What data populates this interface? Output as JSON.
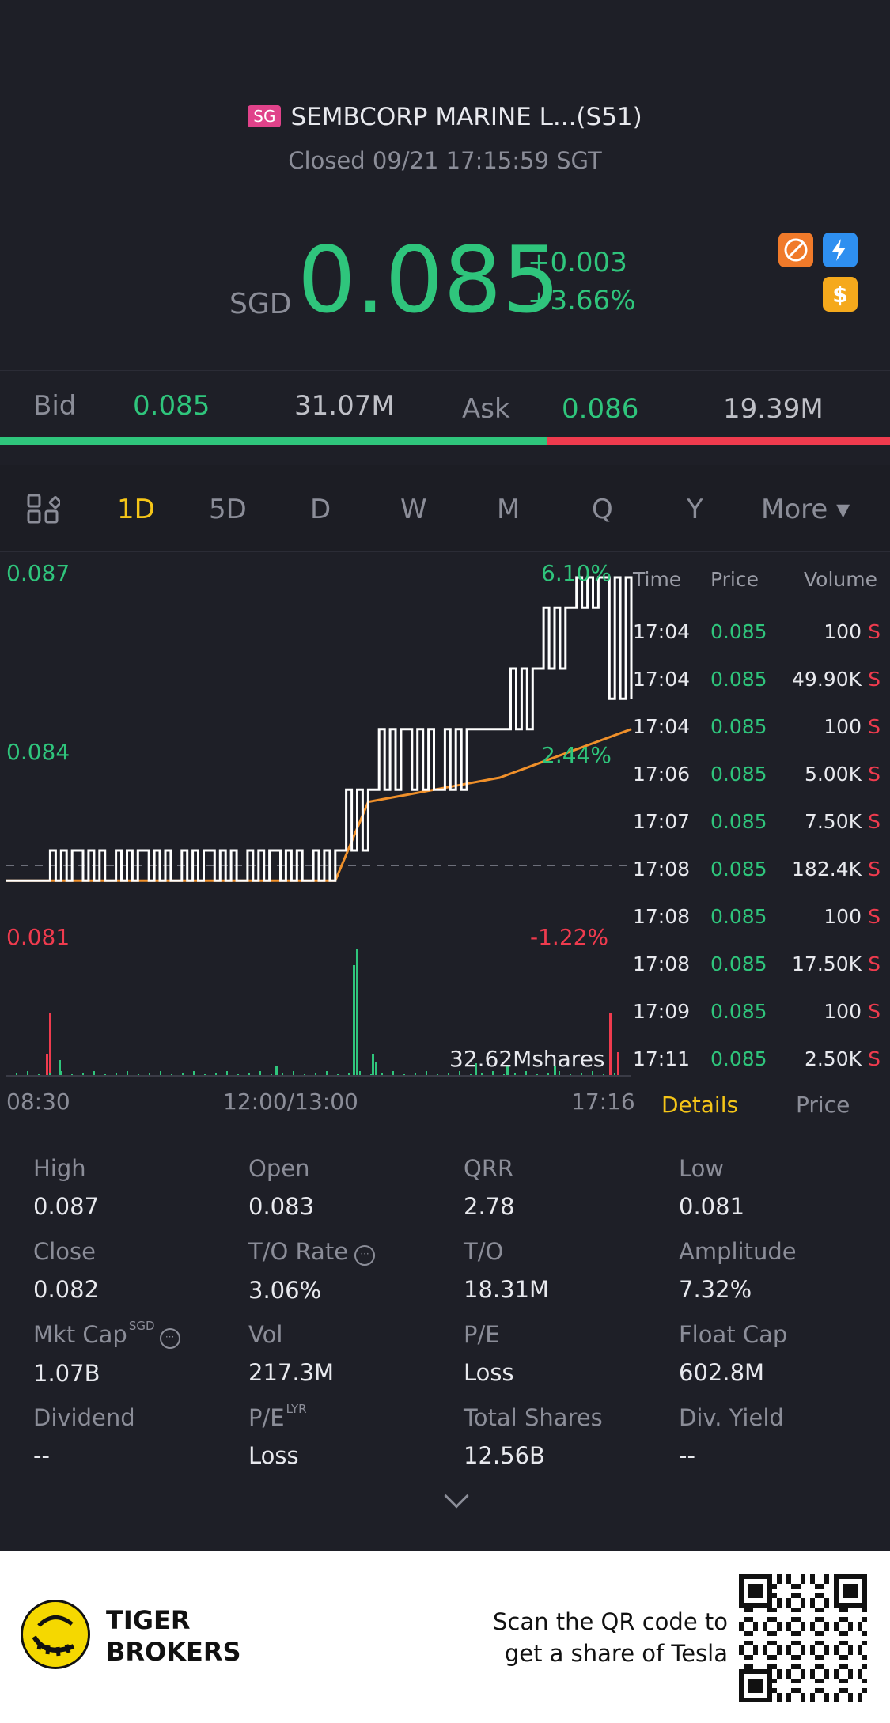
{
  "header": {
    "market_badge": "SG",
    "title": "SEMBCORP MARINE L...(S51)",
    "status": "Closed 09/21 17:15:59 SGT",
    "currency": "SGD",
    "price": "0.085",
    "change": "+0.003",
    "change_pct": "+3.66%",
    "icons": [
      "no-short-icon",
      "lightning-level1-icon",
      "dollar-icon"
    ],
    "dollar_glyph": "$"
  },
  "bidask": {
    "bid_label": "Bid",
    "bid_price": "0.085",
    "bid_volume": "31.07M",
    "ask_label": "Ask",
    "ask_price": "0.086",
    "ask_volume": "19.39M",
    "bid_share": 0.615
  },
  "tabs": {
    "items": [
      "1D",
      "5D",
      "D",
      "W",
      "M",
      "Q",
      "Y",
      "More ▾"
    ],
    "active": "1D"
  },
  "chart": {
    "y_top": "0.087",
    "y_mid": "0.084",
    "y_bottom": "0.081",
    "pct_top": "6.10%",
    "pct_mid": "2.44%",
    "pct_bottom": "-1.22%",
    "volume_label": "32.62Mshares",
    "x_start": "08:30",
    "x_mid": "12:00/13:00",
    "x_end": "17:16"
  },
  "chart_data": {
    "type": "line",
    "series": [
      {
        "values": [
          0.082,
          0.082,
          0.0825,
          0.082,
          0.0825,
          0.082,
          0.0825,
          0.082,
          0.0825,
          0.082,
          0.0825,
          0.0835,
          0.0845,
          0.0835,
          0.0845,
          0.0845,
          0.0855,
          0.0865,
          0.087,
          0.085
        ]
      },
      {
        "values": [
          0.082,
          0.082,
          0.082,
          0.082,
          0.082,
          0.082,
          0.082,
          0.082,
          0.082,
          0.082,
          0.082,
          0.0833,
          0.0834,
          0.0835,
          0.0836,
          0.0837,
          0.0839,
          0.0841,
          0.0843,
          0.0845
        ]
      }
    ],
    "reference": 0.082,
    "ylim": [
      0.081,
      0.087
    ]
  },
  "trades": {
    "headers": {
      "time": "Time",
      "price": "Price",
      "volume": "Volume"
    },
    "side_marker": "S",
    "rows": [
      {
        "time": "17:04",
        "price": "0.085",
        "volume": "100"
      },
      {
        "time": "17:04",
        "price": "0.085",
        "volume": "49.90K"
      },
      {
        "time": "17:04",
        "price": "0.085",
        "volume": "100"
      },
      {
        "time": "17:06",
        "price": "0.085",
        "volume": "5.00K"
      },
      {
        "time": "17:07",
        "price": "0.085",
        "volume": "7.50K"
      },
      {
        "time": "17:08",
        "price": "0.085",
        "volume": "182.4K"
      },
      {
        "time": "17:08",
        "price": "0.085",
        "volume": "100"
      },
      {
        "time": "17:08",
        "price": "0.085",
        "volume": "17.50K"
      },
      {
        "time": "17:09",
        "price": "0.085",
        "volume": "100"
      },
      {
        "time": "17:11",
        "price": "0.085",
        "volume": "2.50K"
      }
    ],
    "tab_details": "Details",
    "tab_price": "Price"
  },
  "stats": {
    "high_label": "High",
    "high": "0.087",
    "open_label": "Open",
    "open": "0.083",
    "qrr_label": "QRR",
    "qrr": "2.78",
    "low_label": "Low",
    "low": "0.081",
    "close_label": "Close",
    "close": "0.082",
    "to_rate_label": "T/O Rate",
    "to_rate": "3.06%",
    "to_label": "T/O",
    "to": "18.31M",
    "amplitude_label": "Amplitude",
    "amplitude": "7.32%",
    "mktcap_label": "Mkt Cap",
    "mktcap_sup": "SGD",
    "mktcap": "1.07B",
    "vol_label": "Vol",
    "vol": "217.3M",
    "pe_label": "P/E",
    "pe": "Loss",
    "floatcap_label": "Float Cap",
    "floatcap": "602.8M",
    "dividend_label": "Dividend",
    "dividend": "--",
    "pe_lyr_label": "P/E",
    "pe_lyr_sup": "LYR",
    "pe_lyr": "Loss",
    "total_shares_label": "Total Shares",
    "total_shares": "12.56B",
    "div_yield_label": "Div. Yield",
    "div_yield": "--"
  },
  "footer": {
    "brand_line1": "TIGER",
    "brand_line2": "BROKERS",
    "promo_line1": "Scan the QR code to",
    "promo_line2": "get a share of Tesla"
  },
  "colors": {
    "up": "#2fc57c",
    "down": "#ef3b4e",
    "accent": "#f5c518",
    "avg_line": "#f0902a"
  }
}
